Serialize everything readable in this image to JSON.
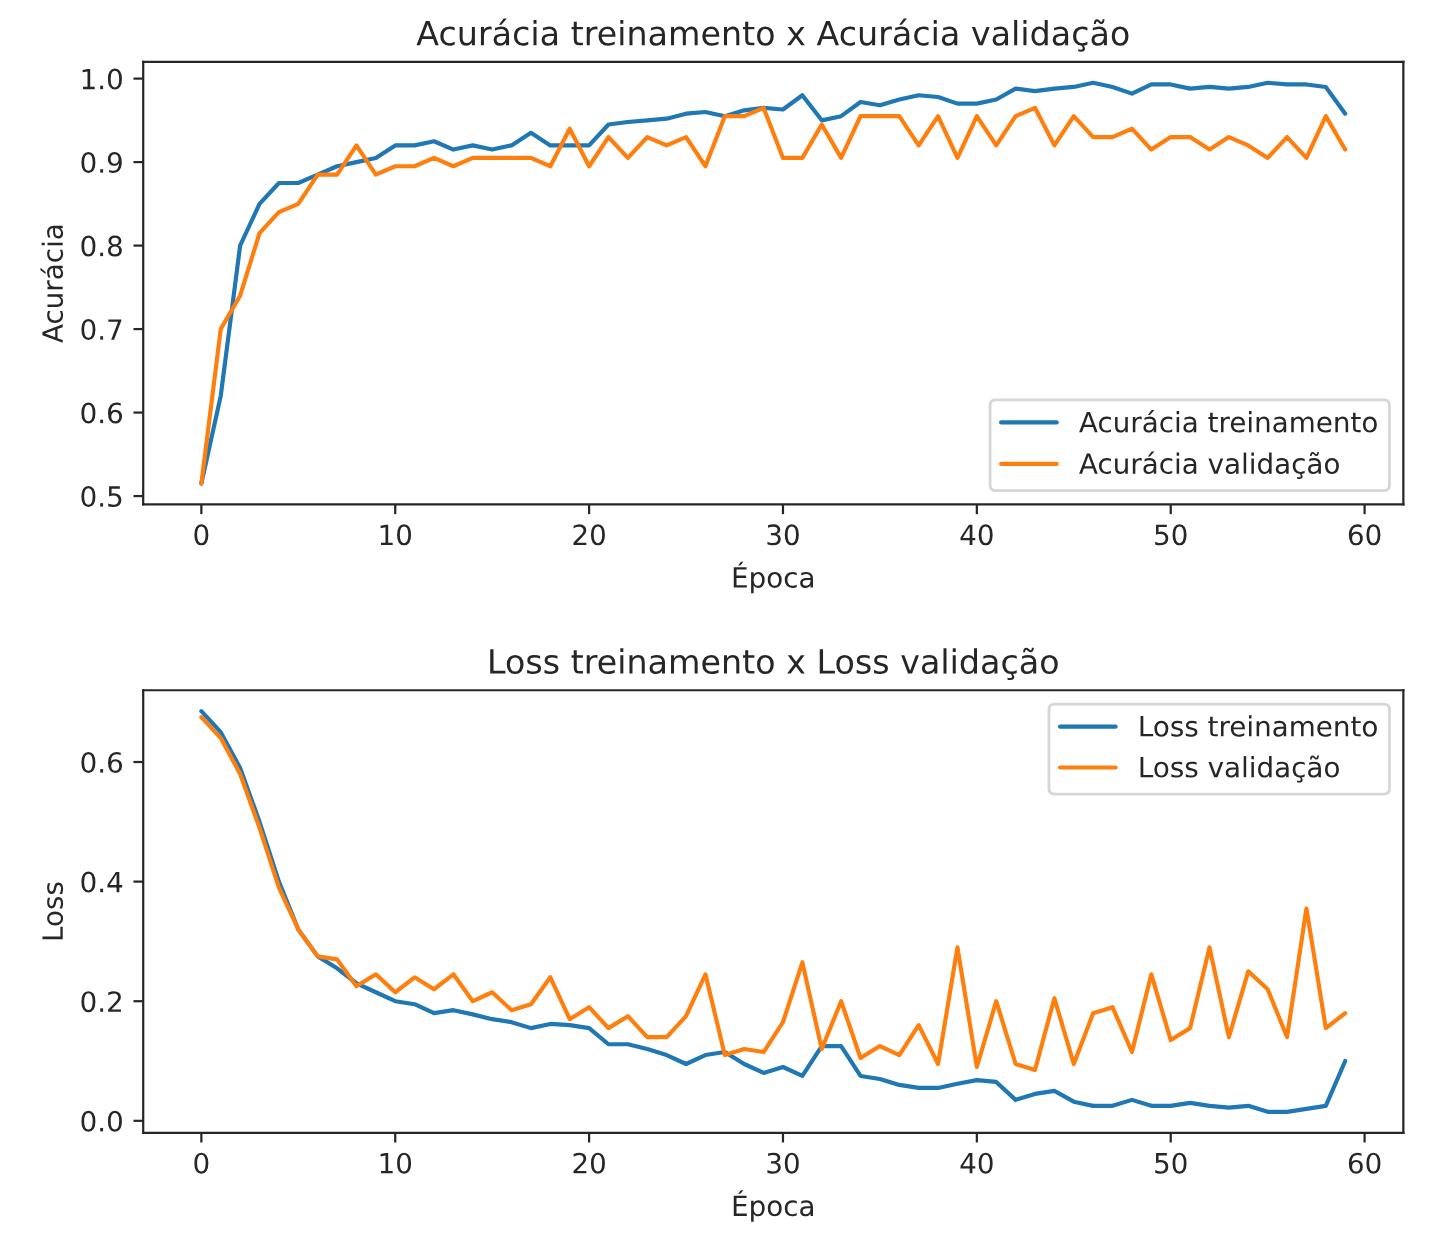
{
  "chart_data": [
    {
      "type": "line",
      "title": "Acurácia treinamento x Acurácia validação",
      "xlabel": "Época",
      "ylabel": "Acurácia",
      "x": [
        0,
        1,
        2,
        3,
        4,
        5,
        6,
        7,
        8,
        9,
        10,
        11,
        12,
        13,
        14,
        15,
        16,
        17,
        18,
        19,
        20,
        21,
        22,
        23,
        24,
        25,
        26,
        27,
        28,
        29,
        30,
        31,
        32,
        33,
        34,
        35,
        36,
        37,
        38,
        39,
        40,
        41,
        42,
        43,
        44,
        45,
        46,
        47,
        48,
        49,
        50,
        51,
        52,
        53,
        54,
        55,
        56,
        57,
        58,
        59
      ],
      "series": [
        {
          "name": "Acurácia treinamento",
          "color": "#1f77b4",
          "values": [
            0.515,
            0.62,
            0.8,
            0.85,
            0.875,
            0.875,
            0.885,
            0.895,
            0.9,
            0.905,
            0.92,
            0.92,
            0.925,
            0.915,
            0.92,
            0.915,
            0.92,
            0.935,
            0.92,
            0.92,
            0.92,
            0.945,
            0.948,
            0.95,
            0.952,
            0.958,
            0.96,
            0.955,
            0.962,
            0.965,
            0.963,
            0.98,
            0.95,
            0.955,
            0.972,
            0.968,
            0.975,
            0.98,
            0.978,
            0.97,
            0.97,
            0.975,
            0.988,
            0.985,
            0.988,
            0.99,
            0.995,
            0.99,
            0.982,
            0.993,
            0.993,
            0.988,
            0.99,
            0.988,
            0.99,
            0.995,
            0.993,
            0.993,
            0.99,
            0.958
          ]
        },
        {
          "name": "Acurácia validação",
          "color": "#ff7f0e",
          "values": [
            0.515,
            0.7,
            0.74,
            0.815,
            0.84,
            0.85,
            0.885,
            0.885,
            0.92,
            0.885,
            0.895,
            0.895,
            0.905,
            0.895,
            0.905,
            0.905,
            0.905,
            0.905,
            0.895,
            0.94,
            0.895,
            0.93,
            0.905,
            0.93,
            0.92,
            0.93,
            0.895,
            0.955,
            0.955,
            0.965,
            0.905,
            0.905,
            0.945,
            0.905,
            0.955,
            0.955,
            0.955,
            0.92,
            0.955,
            0.905,
            0.955,
            0.92,
            0.955,
            0.965,
            0.92,
            0.955,
            0.93,
            0.93,
            0.94,
            0.915,
            0.93,
            0.93,
            0.915,
            0.93,
            0.92,
            0.905,
            0.93,
            0.905,
            0.955,
            0.915
          ]
        }
      ],
      "xlim": [
        -3,
        62
      ],
      "xticks": [
        0,
        10,
        20,
        30,
        40,
        50,
        60
      ],
      "ylim": [
        0.49,
        1.02
      ],
      "yticks": [
        0.5,
        0.6,
        0.7,
        0.8,
        0.9,
        {
          "value": 1,
          "label": "1.0"
        }
      ],
      "legend": "lower right",
      "grid": false
    },
    {
      "type": "line",
      "title": "Loss treinamento x Loss validação",
      "xlabel": "Época",
      "ylabel": "Loss",
      "x": [
        0,
        1,
        2,
        3,
        4,
        5,
        6,
        7,
        8,
        9,
        10,
        11,
        12,
        13,
        14,
        15,
        16,
        17,
        18,
        19,
        20,
        21,
        22,
        23,
        24,
        25,
        26,
        27,
        28,
        29,
        30,
        31,
        32,
        33,
        34,
        35,
        36,
        37,
        38,
        39,
        40,
        41,
        42,
        43,
        44,
        45,
        46,
        47,
        48,
        49,
        50,
        51,
        52,
        53,
        54,
        55,
        56,
        57,
        58,
        59
      ],
      "series": [
        {
          "name": "Loss treinamento",
          "color": "#1f77b4",
          "values": [
            0.685,
            0.65,
            0.59,
            0.5,
            0.4,
            0.32,
            0.275,
            0.255,
            0.23,
            0.215,
            0.2,
            0.195,
            0.18,
            0.185,
            0.178,
            0.17,
            0.165,
            0.155,
            0.162,
            0.16,
            0.155,
            0.128,
            0.128,
            0.12,
            0.11,
            0.095,
            0.11,
            0.115,
            0.095,
            0.08,
            0.09,
            0.075,
            0.125,
            0.125,
            0.075,
            0.07,
            0.06,
            0.055,
            0.055,
            0.062,
            0.068,
            0.065,
            0.035,
            0.045,
            0.05,
            0.032,
            0.025,
            0.025,
            0.035,
            0.025,
            0.025,
            0.03,
            0.025,
            0.022,
            0.025,
            0.015,
            0.015,
            0.02,
            0.025,
            0.1
          ]
        },
        {
          "name": "Loss validação",
          "color": "#ff7f0e",
          "values": [
            0.675,
            0.64,
            0.58,
            0.49,
            0.39,
            0.32,
            0.275,
            0.27,
            0.225,
            0.245,
            0.215,
            0.24,
            0.22,
            0.245,
            0.2,
            0.215,
            0.185,
            0.195,
            0.24,
            0.17,
            0.19,
            0.155,
            0.175,
            0.14,
            0.14,
            0.175,
            0.245,
            0.11,
            0.12,
            0.115,
            0.165,
            0.265,
            0.12,
            0.2,
            0.105,
            0.125,
            0.11,
            0.16,
            0.095,
            0.29,
            0.09,
            0.2,
            0.095,
            0.085,
            0.205,
            0.095,
            0.18,
            0.19,
            0.115,
            0.245,
            0.135,
            0.155,
            0.29,
            0.14,
            0.25,
            0.22,
            0.14,
            0.355,
            0.155,
            0.18
          ]
        }
      ],
      "xlim": [
        -3,
        62
      ],
      "xticks": [
        0,
        10,
        20,
        30,
        40,
        50,
        60
      ],
      "ylim": [
        -0.02,
        0.72
      ],
      "yticks": [
        {
          "value": 0,
          "label": "0.0"
        },
        0.2,
        0.4,
        0.6
      ],
      "legend": "upper right",
      "grid": false
    }
  ]
}
